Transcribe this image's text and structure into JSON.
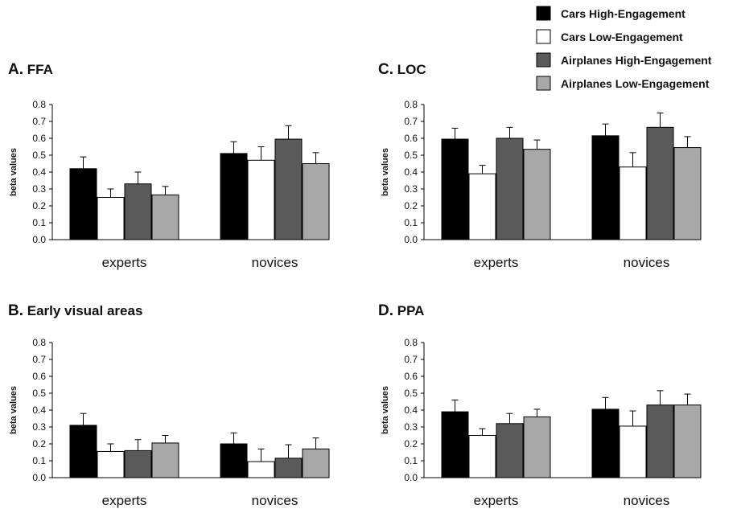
{
  "legend": {
    "entries": [
      {
        "label": "Cars High-Engagement",
        "color": "#000000"
      },
      {
        "label": "Cars Low-Engagement",
        "color": "#ffffff"
      },
      {
        "label": "Airplanes High-Engagement",
        "color": "#5a5a5a"
      },
      {
        "label": "Airplanes Low-Engagement",
        "color": "#a8a8a8"
      }
    ]
  },
  "chart_data": [
    {
      "type": "bar",
      "letter": "A.",
      "title": "FFA",
      "ylabel": "beta values",
      "ylim": [
        0,
        0.8
      ],
      "yticks": [
        "0.0",
        "0.1",
        "0.2",
        "0.3",
        "0.4",
        "0.5",
        "0.6",
        "0.7",
        "0.8"
      ],
      "categories": [
        "experts",
        "novices"
      ],
      "series": [
        {
          "name": "Cars High-Engagement",
          "values": [
            0.42,
            0.51
          ],
          "errors": [
            0.07,
            0.07
          ]
        },
        {
          "name": "Cars Low-Engagement",
          "values": [
            0.25,
            0.47
          ],
          "errors": [
            0.05,
            0.08
          ]
        },
        {
          "name": "Airplanes High-Engagement",
          "values": [
            0.33,
            0.595
          ],
          "errors": [
            0.07,
            0.08
          ]
        },
        {
          "name": "Airplanes Low-Engagement",
          "values": [
            0.265,
            0.45
          ],
          "errors": [
            0.05,
            0.065
          ]
        }
      ]
    },
    {
      "type": "bar",
      "letter": "C.",
      "title": "LOC",
      "ylabel": "beta values",
      "ylim": [
        0,
        0.8
      ],
      "yticks": [
        "0.0",
        "0.1",
        "0.2",
        "0.3",
        "0.4",
        "0.5",
        "0.6",
        "0.7",
        "0.8"
      ],
      "categories": [
        "experts",
        "novices"
      ],
      "series": [
        {
          "name": "Cars High-Engagement",
          "values": [
            0.595,
            0.615
          ],
          "errors": [
            0.065,
            0.07
          ]
        },
        {
          "name": "Cars Low-Engagement",
          "values": [
            0.39,
            0.43
          ],
          "errors": [
            0.05,
            0.085
          ]
        },
        {
          "name": "Airplanes High-Engagement",
          "values": [
            0.6,
            0.665
          ],
          "errors": [
            0.065,
            0.085
          ]
        },
        {
          "name": "Airplanes Low-Engagement",
          "values": [
            0.535,
            0.545
          ],
          "errors": [
            0.055,
            0.065
          ]
        }
      ]
    },
    {
      "type": "bar",
      "letter": "B.",
      "title": "Early visual areas",
      "ylabel": "beta values",
      "ylim": [
        0,
        0.8
      ],
      "yticks": [
        "0.0",
        "0.1",
        "0.2",
        "0.3",
        "0.4",
        "0.5",
        "0.6",
        "0.7",
        "0.8"
      ],
      "categories": [
        "experts",
        "novices"
      ],
      "series": [
        {
          "name": "Cars High-Engagement",
          "values": [
            0.31,
            0.2
          ],
          "errors": [
            0.07,
            0.065
          ]
        },
        {
          "name": "Cars Low-Engagement",
          "values": [
            0.155,
            0.095
          ],
          "errors": [
            0.045,
            0.075
          ]
        },
        {
          "name": "Airplanes High-Engagement",
          "values": [
            0.16,
            0.115
          ],
          "errors": [
            0.065,
            0.08
          ]
        },
        {
          "name": "Airplanes Low-Engagement",
          "values": [
            0.205,
            0.17
          ],
          "errors": [
            0.045,
            0.065
          ]
        }
      ]
    },
    {
      "type": "bar",
      "letter": "D.",
      "title": "PPA",
      "ylabel": "beta values",
      "ylim": [
        0,
        0.8
      ],
      "yticks": [
        "0.0",
        "0.1",
        "0.2",
        "0.3",
        "0.4",
        "0.5",
        "0.6",
        "0.7",
        "0.8"
      ],
      "categories": [
        "experts",
        "novices"
      ],
      "series": [
        {
          "name": "Cars High-Engagement",
          "values": [
            0.39,
            0.405
          ],
          "errors": [
            0.07,
            0.07
          ]
        },
        {
          "name": "Cars Low-Engagement",
          "values": [
            0.25,
            0.305
          ],
          "errors": [
            0.04,
            0.09
          ]
        },
        {
          "name": "Airplanes High-Engagement",
          "values": [
            0.32,
            0.43
          ],
          "errors": [
            0.06,
            0.085
          ]
        },
        {
          "name": "Airplanes Low-Engagement",
          "values": [
            0.36,
            0.43
          ],
          "errors": [
            0.045,
            0.065
          ]
        }
      ]
    }
  ]
}
